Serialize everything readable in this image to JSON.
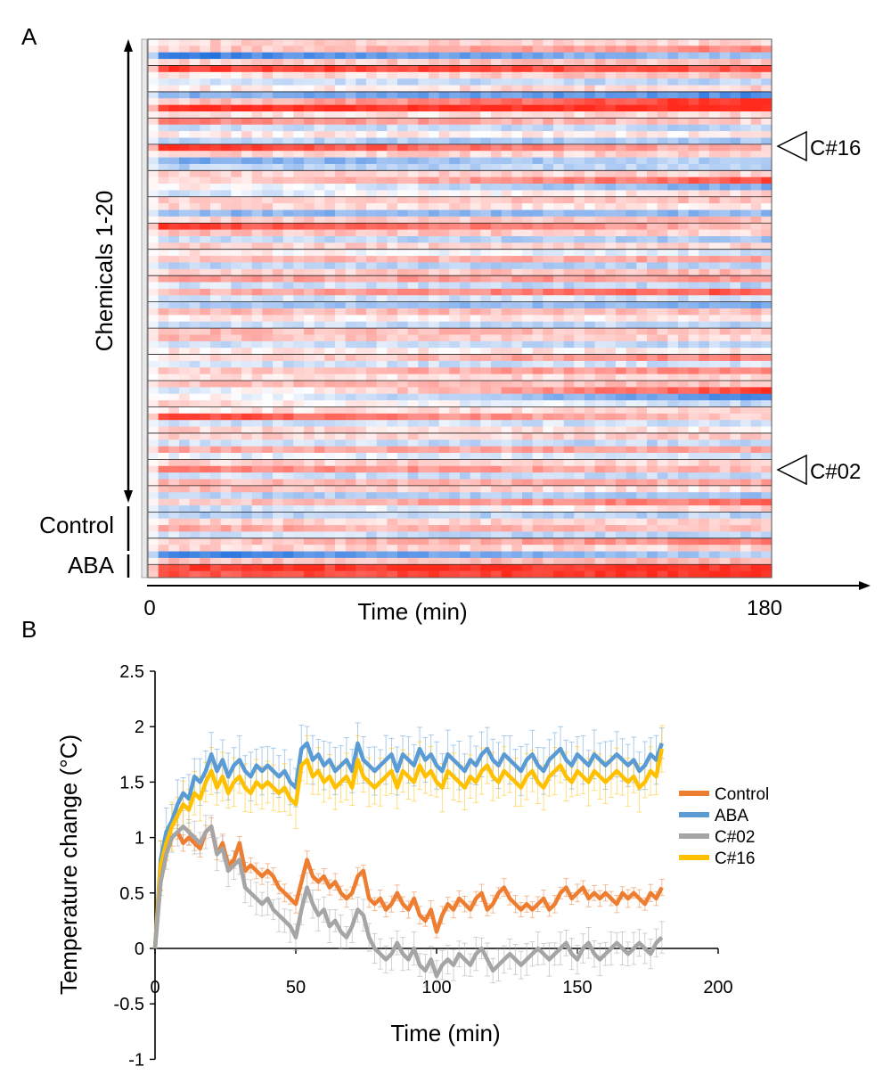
{
  "chart_data": [
    {
      "panel": "A",
      "type": "heatmap",
      "xlabel": "Time (min)",
      "x_start_label": "0",
      "x_end_label": "180",
      "xlim": [
        0,
        180
      ],
      "row_groups": [
        {
          "label": "Chemicals 1-20",
          "rows": 20,
          "subrows_per_row": 4
        },
        {
          "label": "Control",
          "rows": 1,
          "subrows_per_row": 4
        },
        {
          "label": "ABA",
          "rows": 1,
          "subrows_per_row": 2
        }
      ],
      "markers": [
        {
          "label": "C#16",
          "row": 4
        },
        {
          "label": "C#02",
          "row": 18
        }
      ],
      "color_scale": {
        "low": "#1f6fde",
        "mid": "#ffffff",
        "high": "#ff2a1c"
      },
      "row_values_start": [
        0.2,
        0.2,
        -0.9,
        0.2,
        0.9,
        0.1,
        -0.2,
        0.1,
        -0.5,
        0.2,
        1.0,
        0.1,
        0.6,
        -0.2,
        0.1,
        -0.3,
        1.0,
        0.2,
        -0.6,
        -0.3,
        0.2,
        0.1,
        0.1,
        -0.2,
        0.2,
        0.2,
        -0.5,
        0.2,
        0.9,
        0.3,
        -0.2,
        0.2,
        0.1,
        0.3,
        -0.3,
        0.2,
        0.4,
        -0.2,
        0.3,
        -0.2,
        -0.3,
        0.3,
        0.1,
        -0.2,
        0.3,
        0.3,
        -0.2,
        0.1,
        0.1,
        -0.2,
        0.2,
        0.1,
        0.3,
        -0.2,
        0.1,
        0.2,
        0.1,
        0.9,
        -0.2,
        0.2,
        0.2,
        -0.2,
        0.4,
        -0.1,
        0.2,
        0.6,
        -0.2,
        0.3,
        0.3,
        -0.3,
        0.2,
        -0.3,
        -0.3,
        0.2,
        0.4,
        -0.2,
        0.2,
        0.2,
        -0.9,
        0.3,
        0.9,
        0.8
      ],
      "row_values_end": [
        0.2,
        0.6,
        -0.4,
        0.3,
        0.8,
        0.3,
        -0.3,
        0.2,
        -0.8,
        1.0,
        1.0,
        0.2,
        0.2,
        -0.3,
        0.1,
        -0.4,
        0.3,
        0.2,
        -0.3,
        -0.3,
        0.2,
        0.8,
        -0.6,
        0.2,
        0.3,
        0.1,
        -0.5,
        0.3,
        0.3,
        0.2,
        -0.4,
        0.2,
        -0.2,
        0.4,
        -0.3,
        0.3,
        0.5,
        -0.3,
        0.8,
        -0.2,
        -0.6,
        0.3,
        0.1,
        -0.3,
        0.3,
        0.2,
        -0.3,
        0.1,
        0.6,
        -0.2,
        0.6,
        0.2,
        0.3,
        0.9,
        -0.8,
        -0.3,
        0.2,
        0.2,
        -0.2,
        0.1,
        0.2,
        -0.3,
        0.4,
        -0.2,
        0.2,
        0.3,
        -0.3,
        0.4,
        0.1,
        -0.4,
        0.7,
        0.2,
        -0.3,
        0.2,
        0.3,
        -0.3,
        0.6,
        0.2,
        -0.3,
        0.3,
        1.0,
        1.0
      ]
    },
    {
      "panel": "B",
      "type": "line",
      "xlabel": "Time (min)",
      "ylabel": "Temperature change (°C)",
      "xlim": [
        0,
        200
      ],
      "ylim": [
        -1,
        2.5
      ],
      "xticks": [
        0,
        50,
        100,
        150,
        200
      ],
      "yticks": [
        -1,
        -0.5,
        0,
        0.5,
        1,
        1.5,
        2,
        2.5
      ],
      "xtick_labels": [
        "0",
        "50",
        "100",
        "150",
        "200"
      ],
      "ytick_labels": [
        "-1",
        "-0.5",
        "0",
        "0.5",
        "1",
        "1.5",
        "2",
        "2.5"
      ],
      "legend_position": "right",
      "x": [
        0,
        2,
        4,
        6,
        8,
        10,
        12,
        14,
        16,
        18,
        20,
        22,
        24,
        26,
        28,
        30,
        32,
        34,
        36,
        38,
        40,
        42,
        44,
        46,
        48,
        50,
        52,
        54,
        56,
        58,
        60,
        62,
        64,
        66,
        68,
        70,
        72,
        74,
        76,
        78,
        80,
        82,
        84,
        86,
        88,
        90,
        92,
        94,
        96,
        98,
        100,
        102,
        104,
        106,
        108,
        110,
        112,
        114,
        116,
        118,
        120,
        122,
        124,
        126,
        128,
        130,
        132,
        134,
        136,
        138,
        140,
        142,
        144,
        146,
        148,
        150,
        152,
        154,
        156,
        158,
        160,
        162,
        164,
        166,
        168,
        170,
        172,
        174,
        176,
        178,
        180
      ],
      "series": [
        {
          "name": "Control",
          "color": "#ed7d31",
          "error": 0.08,
          "values": [
            0,
            0.6,
            0.85,
            1.0,
            1.05,
            0.95,
            1.0,
            0.95,
            0.9,
            1.05,
            1.1,
            0.85,
            0.95,
            0.75,
            0.8,
            0.95,
            0.7,
            0.75,
            0.7,
            0.65,
            0.7,
            0.65,
            0.55,
            0.5,
            0.45,
            0.4,
            0.6,
            0.8,
            0.65,
            0.6,
            0.65,
            0.55,
            0.6,
            0.5,
            0.45,
            0.5,
            0.65,
            0.7,
            0.45,
            0.4,
            0.45,
            0.35,
            0.4,
            0.5,
            0.4,
            0.35,
            0.45,
            0.3,
            0.25,
            0.35,
            0.15,
            0.3,
            0.4,
            0.35,
            0.45,
            0.4,
            0.35,
            0.45,
            0.5,
            0.35,
            0.4,
            0.5,
            0.55,
            0.45,
            0.4,
            0.35,
            0.4,
            0.35,
            0.4,
            0.45,
            0.35,
            0.4,
            0.5,
            0.55,
            0.45,
            0.5,
            0.55,
            0.45,
            0.5,
            0.45,
            0.5,
            0.45,
            0.4,
            0.5,
            0.45,
            0.5,
            0.45,
            0.4,
            0.5,
            0.45,
            0.55
          ]
        },
        {
          "name": "ABA",
          "color": "#5b9bd5",
          "error": 0.22,
          "values": [
            0,
            0.8,
            1.05,
            1.15,
            1.3,
            1.4,
            1.35,
            1.55,
            1.5,
            1.6,
            1.75,
            1.6,
            1.7,
            1.55,
            1.65,
            1.7,
            1.6,
            1.55,
            1.65,
            1.6,
            1.65,
            1.6,
            1.55,
            1.6,
            1.5,
            1.45,
            1.8,
            1.85,
            1.7,
            1.75,
            1.65,
            1.7,
            1.6,
            1.65,
            1.7,
            1.6,
            1.85,
            1.7,
            1.65,
            1.6,
            1.65,
            1.7,
            1.75,
            1.6,
            1.75,
            1.7,
            1.65,
            1.8,
            1.7,
            1.75,
            1.65,
            1.6,
            1.75,
            1.7,
            1.65,
            1.6,
            1.7,
            1.65,
            1.75,
            1.8,
            1.7,
            1.65,
            1.75,
            1.7,
            1.65,
            1.6,
            1.7,
            1.75,
            1.65,
            1.6,
            1.7,
            1.75,
            1.8,
            1.7,
            1.65,
            1.75,
            1.7,
            1.65,
            1.75,
            1.7,
            1.65,
            1.7,
            1.75,
            1.7,
            1.65,
            1.7,
            1.6,
            1.65,
            1.75,
            1.7,
            1.85
          ]
        },
        {
          "name": "C#02",
          "color": "#a5a5a5",
          "error": 0.15,
          "values": [
            0,
            0.6,
            0.85,
            1.0,
            1.05,
            1.1,
            1.05,
            1.0,
            0.95,
            1.05,
            1.1,
            0.85,
            0.9,
            0.7,
            0.75,
            0.8,
            0.55,
            0.5,
            0.45,
            0.4,
            0.45,
            0.35,
            0.3,
            0.25,
            0.2,
            0.1,
            0.35,
            0.55,
            0.4,
            0.3,
            0.35,
            0.2,
            0.25,
            0.15,
            0.1,
            0.2,
            0.35,
            0.3,
            0.1,
            0.0,
            -0.05,
            -0.1,
            -0.05,
            0.05,
            -0.05,
            -0.1,
            0.0,
            -0.15,
            -0.2,
            -0.1,
            -0.25,
            -0.15,
            -0.1,
            -0.15,
            -0.05,
            -0.1,
            -0.15,
            -0.05,
            0.0,
            -0.1,
            -0.2,
            -0.15,
            -0.1,
            -0.05,
            -0.1,
            -0.15,
            -0.1,
            -0.05,
            0.0,
            -0.05,
            -0.1,
            -0.05,
            0.0,
            0.05,
            -0.05,
            -0.1,
            0.0,
            0.05,
            -0.05,
            -0.1,
            -0.05,
            0.0,
            0.05,
            0.0,
            -0.05,
            0.0,
            0.05,
            0.0,
            -0.05,
            0.05,
            0.1
          ]
        },
        {
          "name": "C#16",
          "color": "#ffc000",
          "error": 0.22,
          "values": [
            0,
            0.75,
            0.95,
            1.1,
            1.2,
            1.3,
            1.25,
            1.4,
            1.35,
            1.5,
            1.6,
            1.45,
            1.55,
            1.4,
            1.5,
            1.55,
            1.45,
            1.4,
            1.5,
            1.45,
            1.5,
            1.45,
            1.4,
            1.45,
            1.35,
            1.3,
            1.65,
            1.7,
            1.55,
            1.6,
            1.5,
            1.55,
            1.45,
            1.5,
            1.55,
            1.45,
            1.7,
            1.55,
            1.5,
            1.45,
            1.5,
            1.55,
            1.6,
            1.45,
            1.6,
            1.55,
            1.5,
            1.65,
            1.55,
            1.6,
            1.5,
            1.45,
            1.6,
            1.55,
            1.5,
            1.45,
            1.55,
            1.5,
            1.6,
            1.65,
            1.55,
            1.5,
            1.6,
            1.55,
            1.5,
            1.45,
            1.55,
            1.6,
            1.5,
            1.45,
            1.55,
            1.6,
            1.65,
            1.55,
            1.5,
            1.6,
            1.55,
            1.5,
            1.6,
            1.55,
            1.5,
            1.55,
            1.6,
            1.55,
            1.5,
            1.55,
            1.45,
            1.5,
            1.6,
            1.55,
            1.8
          ]
        }
      ]
    }
  ],
  "panel_labels": [
    "A",
    "B"
  ]
}
